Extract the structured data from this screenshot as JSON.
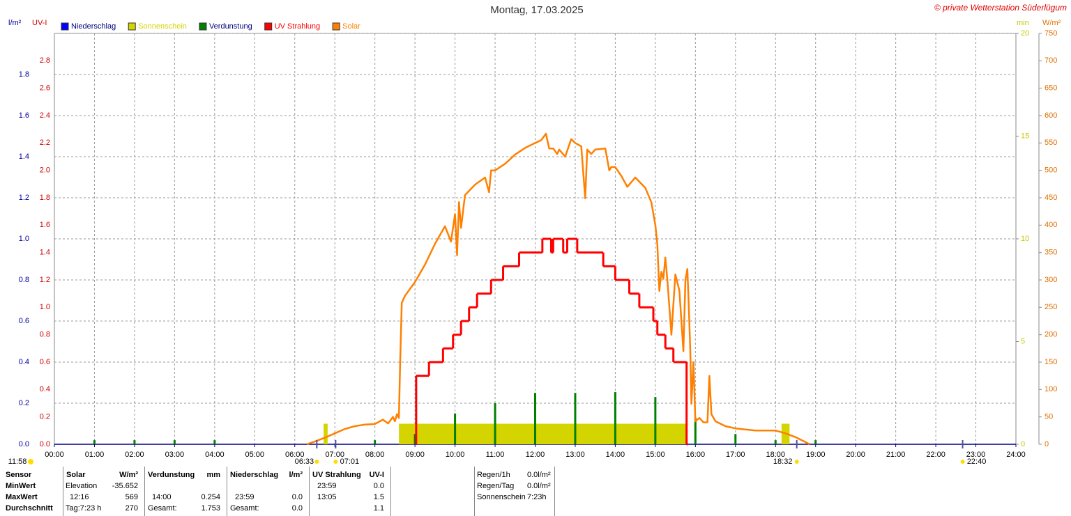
{
  "chart_data": {
    "type": "line",
    "title": "Montag, 17.03.2025",
    "copyright": "© private Wetterstation Süderlügum",
    "xlim": [
      0,
      24
    ],
    "xticks": [
      {
        "value": 0,
        "label": "00:00"
      },
      {
        "value": 1,
        "label": "01:00"
      },
      {
        "value": 2,
        "label": "02:00"
      },
      {
        "value": 3,
        "label": "03:00"
      },
      {
        "value": 4,
        "label": "04:00"
      },
      {
        "value": 5,
        "label": "05:00"
      },
      {
        "value": 6,
        "label": "06:00"
      },
      {
        "value": 7,
        "label": "07:00"
      },
      {
        "value": 8,
        "label": "08:00"
      },
      {
        "value": 9,
        "label": "09:00"
      },
      {
        "value": 10,
        "label": "10:00"
      },
      {
        "value": 11,
        "label": "11:00"
      },
      {
        "value": 12,
        "label": "12:00"
      },
      {
        "value": 13,
        "label": "13:00"
      },
      {
        "value": 14,
        "label": "14:00"
      },
      {
        "value": 15,
        "label": "15:00"
      },
      {
        "value": 16,
        "label": "16:00"
      },
      {
        "value": 17,
        "label": "17:00"
      },
      {
        "value": 18,
        "label": "18:00"
      },
      {
        "value": 19,
        "label": "19:00"
      },
      {
        "value": 20,
        "label": "20:00"
      },
      {
        "value": 21,
        "label": "21:00"
      },
      {
        "value": 22,
        "label": "22:00"
      },
      {
        "value": 23,
        "label": "23:00"
      },
      {
        "value": 24,
        "label": "24:00"
      }
    ],
    "grid": true,
    "grid_axis": 0,
    "axes": [
      {
        "label": "l/m²",
        "color": "#0000a0",
        "lim": [
          0,
          2
        ],
        "ticks": [
          {
            "value": 0,
            "label": "0.0"
          },
          0.2,
          0.4,
          0.6,
          0.8,
          {
            "value": 1,
            "label": "1.0"
          },
          1.2,
          1.4,
          1.6,
          1.8
        ]
      },
      {
        "label": "UV-I",
        "color": "#d00000",
        "lim": [
          0,
          3
        ],
        "ticks": [
          {
            "value": 0,
            "label": "0.0"
          },
          0.2,
          0.4,
          0.6,
          0.8,
          {
            "value": 1,
            "label": "1.0"
          },
          1.2,
          1.4,
          1.6,
          1.8,
          {
            "value": 2,
            "label": "2.0"
          },
          2.2,
          2.4,
          2.6,
          2.8
        ]
      },
      {
        "label": "min",
        "color": "#c8c800",
        "lim": [
          0,
          20
        ],
        "ticks": [
          0,
          5,
          10,
          15,
          20
        ]
      },
      {
        "label": "W/m²",
        "color": "#e07000",
        "lim": [
          0,
          750
        ],
        "ticks": [
          0,
          50,
          100,
          150,
          200,
          250,
          300,
          350,
          400,
          450,
          500,
          550,
          600,
          650,
          700,
          750
        ]
      }
    ],
    "series": [
      {
        "name": "Niederschlag",
        "color": "#0000ff",
        "kind": "bar",
        "axis": 0,
        "x": [],
        "values": []
      },
      {
        "name": "Sonnenschein",
        "color": "#d4d400",
        "kind": "interval",
        "axis": 2,
        "intervals": [
          [
            6.72,
            6.82
          ],
          [
            8.6,
            15.77
          ],
          [
            18.15,
            18.35
          ]
        ],
        "values": [
          1,
          1,
          1
        ]
      },
      {
        "name": "Verdunstung",
        "color": "#008000",
        "kind": "bar",
        "axis": 0,
        "x": [
          1,
          2,
          3,
          4,
          8,
          9,
          10,
          11,
          12,
          13,
          14,
          15,
          16,
          17,
          18,
          19
        ],
        "values": [
          0.02,
          0.02,
          0.02,
          0.02,
          0.02,
          0.05,
          0.15,
          0.2,
          0.25,
          0.25,
          0.254,
          0.23,
          0.13,
          0.05,
          0.02,
          0.02
        ]
      },
      {
        "name": "UV Strahlung",
        "color": "#ff0000",
        "kind": "step",
        "axis": 1,
        "x": [
          9.03,
          9.35,
          9.7,
          9.95,
          10.15,
          10.35,
          10.55,
          10.9,
          11.2,
          11.6,
          12.18,
          12.4,
          12.45,
          12.7,
          12.8,
          13.05,
          13.7,
          14.0,
          14.35,
          14.6,
          14.95,
          15.05,
          15.25,
          15.45,
          15.78
        ],
        "values": [
          0.5,
          0.6,
          0.7,
          0.8,
          0.9,
          1.0,
          1.1,
          1.2,
          1.3,
          1.4,
          1.5,
          1.4,
          1.5,
          1.4,
          1.5,
          1.4,
          1.3,
          1.2,
          1.1,
          1.0,
          0.9,
          0.8,
          0.7,
          0.6,
          0
        ]
      },
      {
        "name": "Solar",
        "color": "#ff8000",
        "kind": "line",
        "axis": 3,
        "x": [
          6.3,
          6.5,
          6.75,
          7,
          7.25,
          7.5,
          7.75,
          8,
          8.2,
          8.33,
          8.45,
          8.5,
          8.55,
          8.6,
          8.63,
          8.67,
          8.75,
          9,
          9.25,
          9.5,
          9.75,
          9.9,
          10,
          10.05,
          10.1,
          10.15,
          10.25,
          10.5,
          10.75,
          10.85,
          10.9,
          11,
          11.25,
          11.5,
          11.75,
          12,
          12.15,
          12.27,
          12.35,
          12.45,
          12.55,
          12.6,
          12.75,
          12.9,
          13,
          13.15,
          13.25,
          13.3,
          13.4,
          13.5,
          13.75,
          13.85,
          13.9,
          14,
          14.15,
          14.3,
          14.5,
          14.75,
          14.9,
          15,
          15.05,
          15.1,
          15.15,
          15.2,
          15.25,
          15.3,
          15.4,
          15.5,
          15.6,
          15.7,
          15.75,
          15.8,
          15.83,
          15.87,
          15.9,
          15.95,
          16,
          16.1,
          16.2,
          16.3,
          16.35,
          16.4,
          16.5,
          16.75,
          17,
          17.5,
          18,
          18.25,
          18.5,
          18.75,
          18.85
        ],
        "values": [
          0,
          5,
          12,
          20,
          28,
          33,
          36,
          37,
          45,
          38,
          50,
          42,
          55,
          48,
          150,
          258,
          271,
          296,
          328,
          366,
          398,
          370,
          420,
          345,
          442,
          395,
          455,
          474,
          487,
          460,
          500,
          500,
          512,
          529,
          541,
          550,
          555,
          567,
          540,
          540,
          530,
          538,
          525,
          557,
          550,
          544,
          449,
          538,
          530,
          538,
          540,
          500,
          506,
          506,
          490,
          470,
          487,
          468,
          442,
          400,
          366,
          280,
          315,
          302,
          341,
          300,
          200,
          310,
          280,
          170,
          300,
          320,
          260,
          175,
          74,
          150,
          42,
          48,
          40,
          40,
          125,
          55,
          42,
          33,
          29,
          25,
          25,
          20,
          13,
          4,
          0
        ]
      }
    ],
    "day_length": "11:58",
    "sun_events": [
      {
        "x": 6.55,
        "label": "06:33"
      },
      {
        "x": 7.02,
        "label": "07:01"
      },
      {
        "x": 18.53,
        "label": "18:32"
      },
      {
        "x": 22.67,
        "label": "22:40"
      }
    ]
  },
  "stats": {
    "header": {
      "sensor": "Sensor",
      "solar": "Solar",
      "solar_unit": "W/m²",
      "evap": "Verdunstung",
      "evap_unit": "mm",
      "rain": "Niederschlag",
      "rain_unit": "l/m²",
      "uv": "UV Strahlung",
      "uv_unit": "UV-I"
    },
    "min": {
      "label": "MinWert",
      "solar_time": "Elevation",
      "solar": "-35.652",
      "uv_time": "23:59",
      "uv": "0.0"
    },
    "max": {
      "label": "MaxWert",
      "solar_time": "12:16",
      "solar": "569",
      "evap_time": "14:00",
      "evap": "0.254",
      "rain_time": "23:59",
      "rain": "0.0",
      "uv_time": "13:05",
      "uv": "1.5"
    },
    "avg": {
      "label": "Durchschnitt",
      "solar_time": "Tag:7:23 h",
      "solar": "270",
      "evap_time": "Gesamt:",
      "evap": "1.753",
      "rain_time": "Gesamt:",
      "rain": "0.0",
      "uv": "1.1"
    },
    "summary": [
      [
        "Regen/1h",
        "0.0l/m²"
      ],
      [
        "Regen/Tag",
        "0.0l/m²"
      ],
      [
        "Sonnenschein",
        "7:23h"
      ]
    ]
  }
}
